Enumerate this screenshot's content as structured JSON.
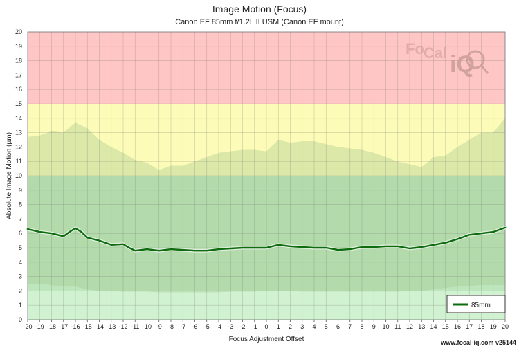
{
  "chart_data": {
    "type": "line",
    "title": "Image Motion (Focus)",
    "subtitle": "Canon EF 85mm f/1.2L II USM (Canon EF mount)",
    "xlabel": "Focus Adjustment Offset",
    "ylabel": "Absolute Image Motion (µm)",
    "xlim": [
      -20,
      20
    ],
    "ylim": [
      0,
      20
    ],
    "x_ticks": [
      -20,
      -19,
      -18,
      -17,
      -16,
      -15,
      -14,
      -13,
      -12,
      -11,
      -10,
      -9,
      -8,
      -7,
      -6,
      -5,
      -4,
      -3,
      -2,
      -1,
      0,
      1,
      2,
      3,
      4,
      5,
      6,
      7,
      8,
      9,
      10,
      11,
      12,
      13,
      14,
      15,
      16,
      17,
      18,
      19,
      20
    ],
    "y_ticks": [
      0,
      1,
      2,
      3,
      4,
      5,
      6,
      7,
      8,
      9,
      10,
      11,
      12,
      13,
      14,
      15,
      16,
      17,
      18,
      19,
      20
    ],
    "grid": true,
    "legend_position": "bottom-right",
    "zones": [
      {
        "from": 15,
        "to": 20,
        "color": "#ffc6c6"
      },
      {
        "from": 10,
        "to": 15,
        "color": "#fcfcb8"
      },
      {
        "from": 2,
        "to": 10,
        "color": "#bde6bd"
      },
      {
        "from": 0,
        "to": 2,
        "color": "#d1f2d1"
      }
    ],
    "series": [
      {
        "name": "85mm",
        "color": "#0e6b0e",
        "x": [
          -20,
          -19,
          -18,
          -17,
          -16.5,
          -16,
          -15.5,
          -15,
          -14,
          -13,
          -12,
          -11.5,
          -11,
          -10,
          -9,
          -8,
          -7,
          -6,
          -5,
          -4,
          -3,
          -2,
          -1,
          0,
          1,
          2,
          3,
          4,
          5,
          6,
          7,
          8,
          9,
          10,
          11,
          12,
          13,
          14,
          15,
          16,
          17,
          18,
          19,
          20
        ],
        "y": [
          6.3,
          6.1,
          6.0,
          5.8,
          6.1,
          6.35,
          6.1,
          5.7,
          5.5,
          5.2,
          5.25,
          5.0,
          4.8,
          4.9,
          4.8,
          4.9,
          4.85,
          4.8,
          4.8,
          4.9,
          4.95,
          5.0,
          5.0,
          5.0,
          5.2,
          5.1,
          5.05,
          5.0,
          5.0,
          4.85,
          4.9,
          5.05,
          5.05,
          5.1,
          5.1,
          4.95,
          5.05,
          5.2,
          5.35,
          5.6,
          5.9,
          6.0,
          6.1,
          6.4
        ]
      }
    ],
    "band": {
      "x": [
        -20,
        -19,
        -18,
        -17,
        -16,
        -15,
        -14,
        -13,
        -12,
        -11,
        -10,
        -9,
        -8,
        -7,
        -6,
        -5,
        -4,
        -3,
        -2,
        -1,
        0,
        1,
        2,
        3,
        4,
        5,
        6,
        7,
        8,
        9,
        10,
        11,
        12,
        13,
        14,
        15,
        16,
        17,
        18,
        19,
        20
      ],
      "upper": [
        12.7,
        12.8,
        13.1,
        13.0,
        13.7,
        13.3,
        12.5,
        12.0,
        11.6,
        11.1,
        10.9,
        10.4,
        10.7,
        10.7,
        11.0,
        11.3,
        11.6,
        11.7,
        11.8,
        11.8,
        11.7,
        12.5,
        12.3,
        12.4,
        12.4,
        12.2,
        12.0,
        11.9,
        11.8,
        11.6,
        11.3,
        11.0,
        10.8,
        10.6,
        11.3,
        11.4,
        12.0,
        12.5,
        13.0,
        13.0,
        14.0
      ],
      "lower": [
        2.5,
        2.5,
        2.4,
        2.3,
        2.3,
        2.1,
        2.0,
        2.0,
        1.95,
        1.95,
        1.95,
        1.9,
        1.9,
        1.9,
        1.9,
        1.9,
        1.9,
        1.95,
        1.95,
        1.95,
        2.0,
        2.0,
        2.0,
        1.95,
        1.95,
        1.95,
        1.95,
        1.95,
        1.95,
        1.95,
        1.95,
        1.95,
        2.0,
        2.0,
        2.1,
        2.2,
        2.3,
        2.35,
        2.4,
        2.4,
        2.4
      ]
    }
  },
  "watermark": {
    "text_left": "Fo",
    "text_mid": "Cal",
    "text_right": "iQ"
  },
  "footer": "www.focal-iq.com  v25144"
}
